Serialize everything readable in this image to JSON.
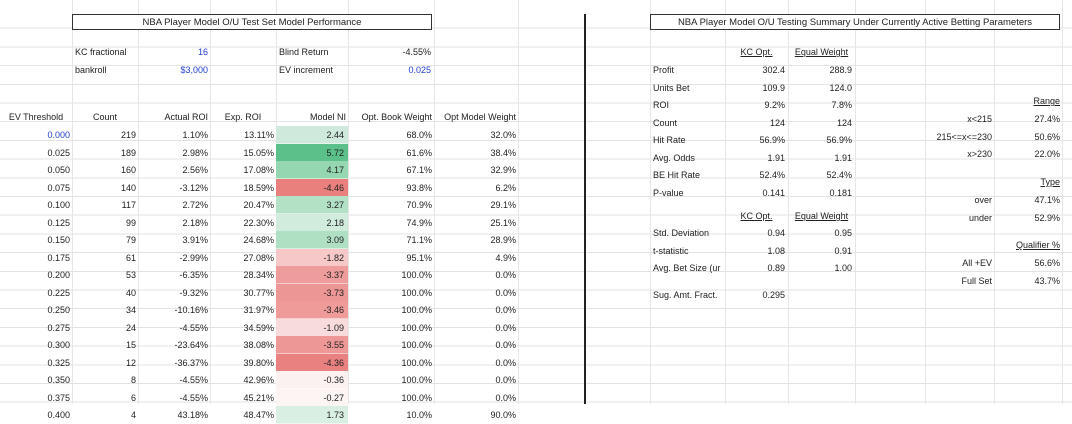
{
  "left_panel": {
    "title": "NBA Player Model O/U Test Set Model Performance",
    "params": {
      "kc_label": "KC fractional",
      "kc_value": "16",
      "bankroll_label": "bankroll",
      "bankroll_value": "$3,000",
      "blind_label": "Blind Return",
      "blind_value": "-4.55%",
      "ev_label": "EV increment",
      "ev_value": "0.025"
    },
    "headers": [
      "EV Threshold",
      "Count",
      "Actual ROI",
      "Exp. ROI",
      "Model NI",
      "Opt. Book Weight",
      "Opt Model Weight"
    ],
    "rows": [
      {
        "ev": "0.000",
        "count": "219",
        "actual": "1.10%",
        "exp": "13.11%",
        "ni": "2.44",
        "book": "68.0%",
        "model": "32.0%",
        "ni_color": "#cfe9dc"
      },
      {
        "ev": "0.025",
        "count": "189",
        "actual": "2.98%",
        "exp": "15.05%",
        "ni": "5.72",
        "book": "61.6%",
        "model": "38.4%",
        "ni_color": "#5cc08a"
      },
      {
        "ev": "0.050",
        "count": "160",
        "actual": "2.56%",
        "exp": "17.08%",
        "ni": "4.17",
        "book": "67.1%",
        "model": "32.9%",
        "ni_color": "#94d7b1"
      },
      {
        "ev": "0.075",
        "count": "140",
        "actual": "-3.12%",
        "exp": "18.59%",
        "ni": "-4.46",
        "book": "93.8%",
        "model": "6.2%",
        "ni_color": "#e9807e"
      },
      {
        "ev": "0.100",
        "count": "117",
        "actual": "2.72%",
        "exp": "20.47%",
        "ni": "3.27",
        "book": "70.9%",
        "model": "29.1%",
        "ni_color": "#b2e1c6"
      },
      {
        "ev": "0.125",
        "count": "99",
        "actual": "2.18%",
        "exp": "22.30%",
        "ni": "2.18",
        "book": "74.9%",
        "model": "25.1%",
        "ni_color": "#d1ebdd"
      },
      {
        "ev": "0.150",
        "count": "79",
        "actual": "3.91%",
        "exp": "24.68%",
        "ni": "3.09",
        "book": "71.1%",
        "model": "28.9%",
        "ni_color": "#b0e0c4"
      },
      {
        "ev": "0.175",
        "count": "61",
        "actual": "-2.99%",
        "exp": "27.08%",
        "ni": "-1.82",
        "book": "95.1%",
        "model": "4.9%",
        "ni_color": "#f6c8c8"
      },
      {
        "ev": "0.200",
        "count": "53",
        "actual": "-6.35%",
        "exp": "28.34%",
        "ni": "-3.37",
        "book": "100.0%",
        "model": "0.0%",
        "ni_color": "#ee9d9c"
      },
      {
        "ev": "0.225",
        "count": "40",
        "actual": "-9.32%",
        "exp": "30.77%",
        "ni": "-3.73",
        "book": "100.0%",
        "model": "0.0%",
        "ni_color": "#ec9695"
      },
      {
        "ev": "0.250",
        "count": "34",
        "actual": "-10.16%",
        "exp": "31.97%",
        "ni": "-3.46",
        "book": "100.0%",
        "model": "0.0%",
        "ni_color": "#ee9b9a"
      },
      {
        "ev": "0.275",
        "count": "24",
        "actual": "-4.55%",
        "exp": "34.59%",
        "ni": "-1.09",
        "book": "100.0%",
        "model": "0.0%",
        "ni_color": "#f8dcdc"
      },
      {
        "ev": "0.300",
        "count": "15",
        "actual": "-23.64%",
        "exp": "38.08%",
        "ni": "-3.55",
        "book": "100.0%",
        "model": "0.0%",
        "ni_color": "#ed9897"
      },
      {
        "ev": "0.325",
        "count": "12",
        "actual": "-36.37%",
        "exp": "39.80%",
        "ni": "-4.36",
        "book": "100.0%",
        "model": "0.0%",
        "ni_color": "#e98180"
      },
      {
        "ev": "0.350",
        "count": "8",
        "actual": "-4.55%",
        "exp": "42.96%",
        "ni": "-0.36",
        "book": "100.0%",
        "model": "0.0%",
        "ni_color": "#fcf1f1"
      },
      {
        "ev": "0.375",
        "count": "6",
        "actual": "-4.55%",
        "exp": "45.21%",
        "ni": "-0.27",
        "book": "100.0%",
        "model": "0.0%",
        "ni_color": "#fdf4f4"
      },
      {
        "ev": "0.400",
        "count": "4",
        "actual": "43.18%",
        "exp": "48.47%",
        "ni": "1.73",
        "book": "10.0%",
        "model": "90.0%",
        "ni_color": "#d9efe3"
      }
    ]
  },
  "right_panel": {
    "title": "NBA Player Model O/U Testing Summary Under Currently Active Betting Parameters",
    "summary_headers": [
      "KC Opt.",
      "Equal Weight"
    ],
    "summary": [
      {
        "label": "Profit",
        "kc": "302.4",
        "eq": "288.9"
      },
      {
        "label": "Units Bet",
        "kc": "109.9",
        "eq": "124.0"
      },
      {
        "label": "ROI",
        "kc": "9.2%",
        "eq": "7.8%"
      },
      {
        "label": "Count",
        "kc": "124",
        "eq": "124"
      },
      {
        "label": "Hit Rate",
        "kc": "56.9%",
        "eq": "56.9%"
      },
      {
        "label": "Avg. Odds",
        "kc": "1.91",
        "eq": "1.91"
      },
      {
        "label": "BE Hit Rate",
        "kc": "52.4%",
        "eq": "52.4%"
      },
      {
        "label": "P-value",
        "kc": "0.141",
        "eq": "0.181"
      }
    ],
    "stats_headers": [
      "KC Opt.",
      "Equal Weight"
    ],
    "stats": [
      {
        "label": "Std. Deviation",
        "kc": "0.94",
        "eq": "0.95"
      },
      {
        "label": "t-statistic",
        "kc": "1.08",
        "eq": "0.91"
      },
      {
        "label": "Avg. Bet Size (ur",
        "kc": "0.89",
        "eq": "1.00"
      }
    ],
    "sug_label": "Sug. Amt. Fract.",
    "sug_value": "0.295",
    "range": {
      "header": "Range",
      "items": [
        {
          "label": "x<215",
          "value": "27.4%"
        },
        {
          "label": "215<=x<=230",
          "value": "50.6%"
        },
        {
          "label": "x>230",
          "value": "22.0%"
        }
      ]
    },
    "type": {
      "header": "Type",
      "items": [
        {
          "label": "over",
          "value": "47.1%"
        },
        {
          "label": "under",
          "value": "52.9%"
        }
      ]
    },
    "qualifier": {
      "header": "Qualifier %",
      "items": [
        {
          "label": "All +EV",
          "value": "56.6%"
        },
        {
          "label": "Full Set",
          "value": "43.7%"
        }
      ]
    }
  }
}
